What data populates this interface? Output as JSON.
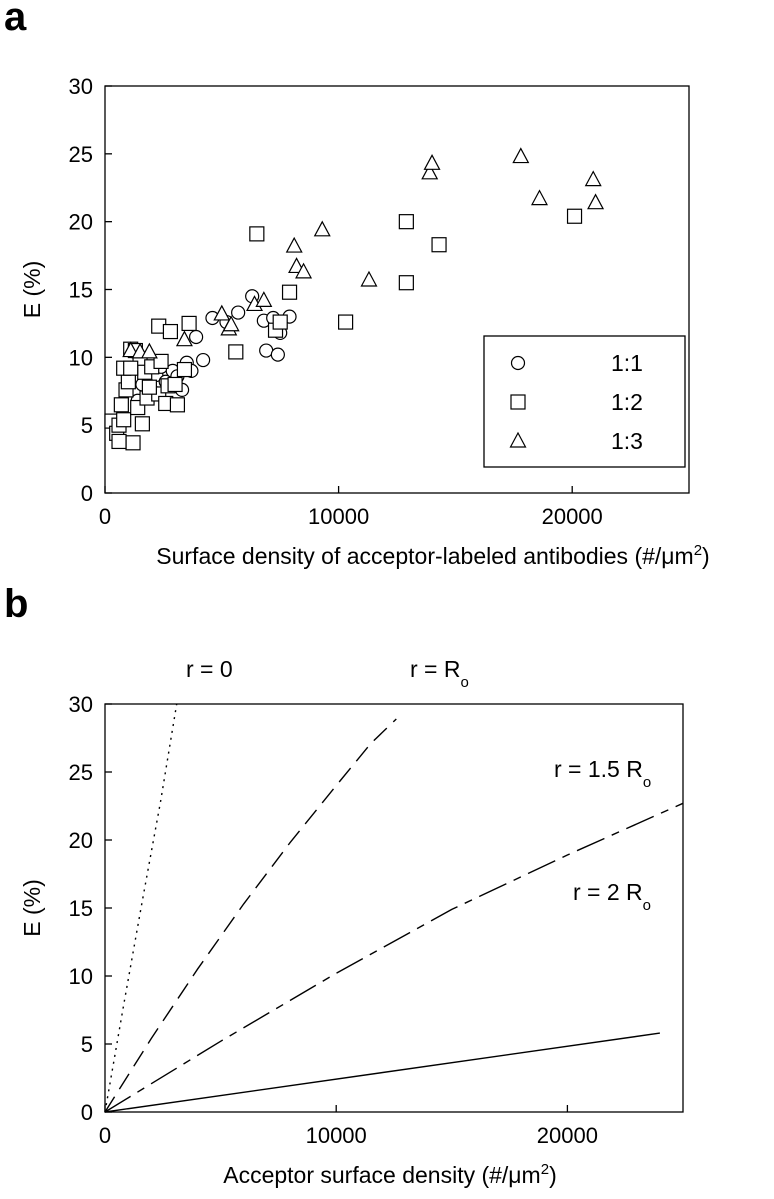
{
  "chart_data": [
    {
      "panel": "a",
      "type": "scatter",
      "xlabel": "Surface density of acceptor-labeled antibodies (#/μm",
      "xlabel_sup": "2",
      "xlabel_end": ")",
      "ylabel": "E (%)",
      "xlim": [
        0,
        25000
      ],
      "ylim": [
        0,
        30
      ],
      "xticks": [
        0,
        10000,
        20000
      ],
      "yticks": [
        0,
        5,
        10,
        15,
        20,
        25,
        30
      ],
      "grid": false,
      "legend_position": "bottom-right",
      "series": [
        {
          "name": "1:1",
          "marker": "circle",
          "points": [
            [
              1600,
              8.0
            ],
            [
              1900,
              8.5
            ],
            [
              2200,
              8.7
            ],
            [
              2400,
              9.3
            ],
            [
              2600,
              8.2
            ],
            [
              2900,
              9.0
            ],
            [
              3100,
              8.6
            ],
            [
              3300,
              7.6
            ],
            [
              3500,
              9.6
            ],
            [
              3700,
              9.0
            ],
            [
              3900,
              11.5
            ],
            [
              4200,
              9.8
            ],
            [
              4600,
              12.9
            ],
            [
              5200,
              12.6
            ],
            [
              5700,
              13.3
            ],
            [
              6300,
              14.5
            ],
            [
              6800,
              12.7
            ],
            [
              7200,
              12.9
            ],
            [
              7500,
              11.8
            ],
            [
              7900,
              13.0
            ],
            [
              6900,
              10.5
            ],
            [
              7400,
              10.2
            ],
            [
              1400,
              6.8
            ],
            [
              2100,
              7.4
            ]
          ]
        },
        {
          "name": "1:2",
          "marker": "square",
          "points": [
            [
              300,
              5.3
            ],
            [
              500,
              4.4
            ],
            [
              600,
              5.0
            ],
            [
              800,
              5.4
            ],
            [
              700,
              6.5
            ],
            [
              900,
              7.6
            ],
            [
              1000,
              8.2
            ],
            [
              800,
              9.2
            ],
            [
              1100,
              10.6
            ],
            [
              1300,
              10.5
            ],
            [
              1500,
              9.7
            ],
            [
              1200,
              3.7
            ],
            [
              600,
              3.8
            ],
            [
              1600,
              5.1
            ],
            [
              1400,
              6.3
            ],
            [
              1800,
              7.0
            ],
            [
              1700,
              8.9
            ],
            [
              2000,
              9.3
            ],
            [
              2300,
              7.3
            ],
            [
              2600,
              6.6
            ],
            [
              2700,
              7.9
            ],
            [
              3000,
              8.0
            ],
            [
              3100,
              6.5
            ],
            [
              3400,
              9.1
            ],
            [
              3600,
              12.5
            ],
            [
              2300,
              12.3
            ],
            [
              2800,
              11.9
            ],
            [
              2400,
              9.7
            ],
            [
              5600,
              10.4
            ],
            [
              6500,
              19.1
            ],
            [
              7300,
              12.0
            ],
            [
              7500,
              12.6
            ],
            [
              7900,
              14.8
            ],
            [
              10300,
              12.6
            ],
            [
              12900,
              20.0
            ],
            [
              12900,
              15.5
            ],
            [
              14300,
              18.3
            ],
            [
              20100,
              20.4
            ],
            [
              1100,
              9.2
            ],
            [
              1900,
              7.8
            ]
          ]
        },
        {
          "name": "1:3",
          "marker": "triangle",
          "points": [
            [
              1100,
              10.5
            ],
            [
              1500,
              10.4
            ],
            [
              1900,
              10.4
            ],
            [
              3400,
              11.3
            ],
            [
              5000,
              13.2
            ],
            [
              5300,
              12.1
            ],
            [
              5400,
              12.4
            ],
            [
              6400,
              13.9
            ],
            [
              6800,
              14.2
            ],
            [
              8100,
              18.2
            ],
            [
              8200,
              16.7
            ],
            [
              8500,
              16.3
            ],
            [
              9300,
              19.4
            ],
            [
              11300,
              15.7
            ],
            [
              13900,
              23.6
            ],
            [
              14000,
              24.3
            ],
            [
              17800,
              24.8
            ],
            [
              18600,
              21.7
            ],
            [
              20900,
              23.1
            ],
            [
              21000,
              21.4
            ]
          ]
        }
      ]
    },
    {
      "panel": "b",
      "type": "line",
      "xlabel": "Acceptor surface density (#/μm",
      "xlabel_sup": "2",
      "xlabel_end": ")",
      "ylabel": "E (%)",
      "xlim": [
        0,
        25000
      ],
      "ylim": [
        0,
        30
      ],
      "xticks": [
        0,
        10000,
        20000
      ],
      "yticks": [
        0,
        5,
        10,
        15,
        20,
        25,
        30
      ],
      "grid": false,
      "series": [
        {
          "name": "r = 0",
          "label": [
            "r = 0",
            ""
          ],
          "dash": "2 5",
          "points": [
            [
              0,
              0
            ],
            [
              800,
              7.8
            ],
            [
              1600,
              15.4
            ],
            [
              2400,
              22.8
            ],
            [
              3100,
              30.0
            ]
          ]
        },
        {
          "name": "r = R",
          "label": [
            "r = R",
            "o"
          ],
          "dash": "18 9",
          "points": [
            [
              0,
              0
            ],
            [
              2000,
              5.4
            ],
            [
              4000,
              10.5
            ],
            [
              6000,
              15.3
            ],
            [
              8000,
              19.8
            ],
            [
              10000,
              24.0
            ],
            [
              11500,
              27.1
            ],
            [
              12600,
              28.9
            ]
          ]
        },
        {
          "name": "r = 1.5 R",
          "label": [
            "r = 1.5 R",
            "o"
          ],
          "dash": "30 8 8 8",
          "points": [
            [
              0,
              0
            ],
            [
              5000,
              5.2
            ],
            [
              10000,
              10.2
            ],
            [
              15000,
              14.9
            ],
            [
              20000,
              18.9
            ],
            [
              25000,
              22.7
            ]
          ]
        },
        {
          "name": "r = 2 R",
          "label": [
            "r = 2 R",
            "o"
          ],
          "dash": "",
          "points": [
            [
              0,
              0
            ],
            [
              24000,
              5.8
            ]
          ]
        }
      ]
    }
  ]
}
